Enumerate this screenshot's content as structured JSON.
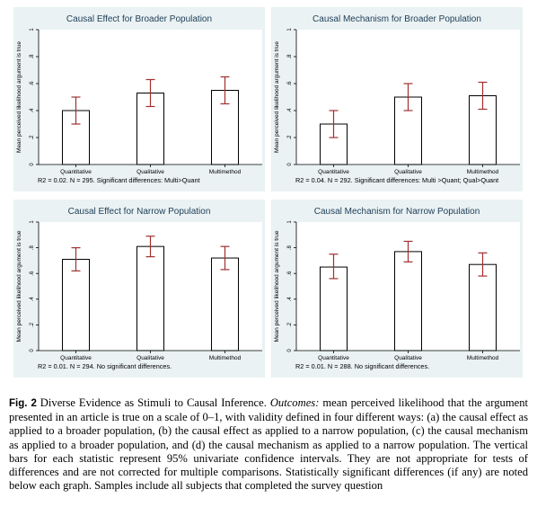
{
  "chart_data": [
    {
      "type": "bar",
      "title": "Causal Effect for Broader Population",
      "ylabel": "Mean perceived likelihood argument is true",
      "categories": [
        "Quantitative",
        "Qualitative",
        "Multimethod"
      ],
      "values": [
        0.4,
        0.53,
        0.55
      ],
      "ci_lower": [
        0.3,
        0.43,
        0.45
      ],
      "ci_upper": [
        0.5,
        0.63,
        0.65
      ],
      "ylim": [
        0,
        1
      ],
      "yticks": [
        "0",
        ".2",
        ".4",
        ".6",
        ".8",
        "1"
      ],
      "note": "R2 = 0.02. N = 295. Significant differences: Multi>Quant"
    },
    {
      "type": "bar",
      "title": "Causal Mechanism for Broader Population",
      "ylabel": "Mean perceived likelihood argument is true",
      "categories": [
        "Quantitative",
        "Qualitative",
        "Multimethod"
      ],
      "values": [
        0.3,
        0.5,
        0.51
      ],
      "ci_lower": [
        0.2,
        0.4,
        0.41
      ],
      "ci_upper": [
        0.4,
        0.6,
        0.61
      ],
      "ylim": [
        0,
        1
      ],
      "yticks": [
        "0",
        ".2",
        ".4",
        ".6",
        ".8",
        "1"
      ],
      "note": "R2 = 0.04. N = 292. Significant differences: Multi >Quant; Qual>Quant"
    },
    {
      "type": "bar",
      "title": "Causal Effect for Narrow Population",
      "ylabel": "Mean perceived likelihood argument is true",
      "categories": [
        "Quantitative",
        "Qualitative",
        "Multimethod"
      ],
      "values": [
        0.71,
        0.81,
        0.72
      ],
      "ci_lower": [
        0.62,
        0.73,
        0.63
      ],
      "ci_upper": [
        0.8,
        0.89,
        0.81
      ],
      "ylim": [
        0,
        1
      ],
      "yticks": [
        "0",
        ".2",
        ".4",
        ".6",
        ".8",
        "1"
      ],
      "note": "R2 = 0.01. N = 294. No significant differences."
    },
    {
      "type": "bar",
      "title": "Causal Mechanism for Narrow Population",
      "ylabel": "Mean perceived likelihood argument is true",
      "categories": [
        "Quantitative",
        "Qualitative",
        "Multimethod"
      ],
      "values": [
        0.65,
        0.77,
        0.67
      ],
      "ci_lower": [
        0.56,
        0.69,
        0.58
      ],
      "ci_upper": [
        0.75,
        0.85,
        0.76
      ],
      "ylim": [
        0,
        1
      ],
      "yticks": [
        "0",
        ".2",
        ".4",
        ".6",
        ".8",
        "1"
      ],
      "note": "R2 =  0.01. N = 288. No significant differences."
    }
  ],
  "caption": {
    "label": "Fig. 2",
    "text_1": " Diverse Evidence as Stimuli to Causal Inference. ",
    "outcomes_label": "Outcomes:",
    "text_2": " mean perceived likelihood that the argument presented in an article is true on a scale of 0–1, with validity defined in four different ways: (a) the causal effect as applied to a broader population, (b) the causal effect as applied to a narrow population, (c) the causal mechanism as applied to a broader population, and (d) the causal mechanism as applied to a narrow population. The vertical bars for each statistic represent 95% univariate confidence intervals. They are not appropriate for tests of differences and are not corrected for multiple comparisons. Statistically significant differences (if any) are noted below each graph. Samples include all subjects that completed the survey question"
  },
  "colors": {
    "panel_background": "#eaf2f3",
    "title_text": "#1e3d58",
    "error_bar": "#a0302e",
    "bar_fill": "#ffffff"
  }
}
